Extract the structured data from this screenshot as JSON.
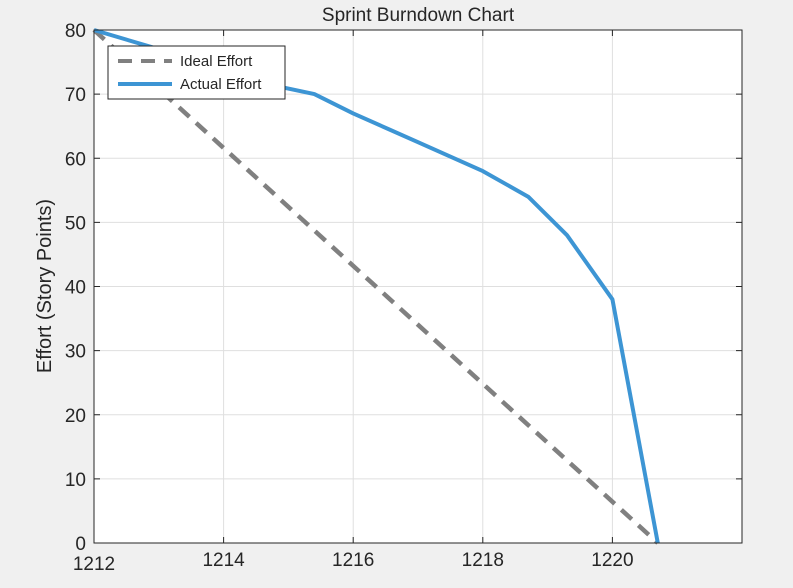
{
  "chart_data": {
    "type": "line",
    "title": "Sprint Burndown Chart",
    "xlabel": "",
    "ylabel": "Effort (Story Points)",
    "xlim": [
      1212,
      1222
    ],
    "ylim": [
      0,
      80
    ],
    "xticks": [
      1212,
      1214,
      1216,
      1218,
      1220
    ],
    "yticks": [
      0,
      10,
      20,
      30,
      40,
      50,
      60,
      70,
      80
    ],
    "grid": true,
    "legend_position": "top-left",
    "series": [
      {
        "name": "Ideal Effort",
        "style": "dashed",
        "color": "#808080",
        "x": [
          1212,
          1220.7
        ],
        "y": [
          80,
          0
        ]
      },
      {
        "name": "Actual Effort",
        "style": "solid",
        "color": "#3d95d4",
        "x": [
          1212,
          1213,
          1214,
          1215.4,
          1216,
          1217,
          1218,
          1218.7,
          1219.3,
          1220,
          1220.7
        ],
        "y": [
          80,
          77,
          73,
          70,
          67,
          62.5,
          58,
          54,
          48,
          38,
          0
        ]
      }
    ]
  }
}
